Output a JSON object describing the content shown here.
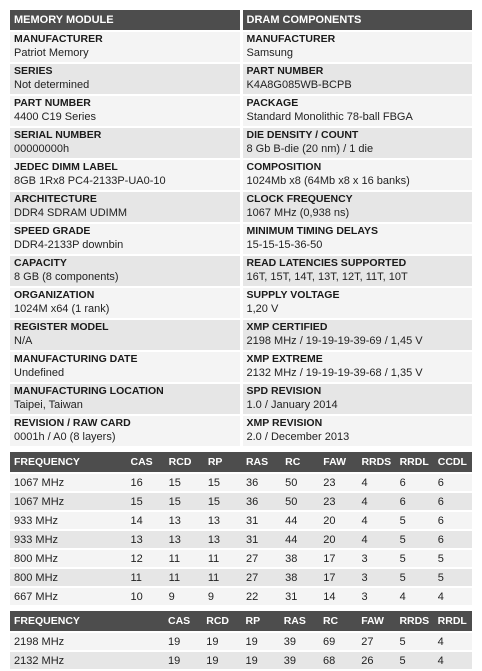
{
  "module": {
    "header": "MEMORY MODULE",
    "fields": [
      {
        "label": "MANUFACTURER",
        "value": "Patriot Memory"
      },
      {
        "label": "SERIES",
        "value": "Not determined"
      },
      {
        "label": "PART NUMBER",
        "value": "4400 C19 Series"
      },
      {
        "label": "SERIAL NUMBER",
        "value": "00000000h"
      },
      {
        "label": "JEDEC DIMM LABEL",
        "value": "8GB 1Rx8 PC4-2133P-UA0-10"
      },
      {
        "label": "ARCHITECTURE",
        "value": "DDR4 SDRAM UDIMM"
      },
      {
        "label": "SPEED GRADE",
        "value": "DDR4-2133P downbin"
      },
      {
        "label": "CAPACITY",
        "value": "8 GB (8 components)"
      },
      {
        "label": "ORGANIZATION",
        "value": "1024M x64 (1 rank)"
      },
      {
        "label": "REGISTER MODEL",
        "value": "N/A"
      },
      {
        "label": "MANUFACTURING DATE",
        "value": "Undefined"
      },
      {
        "label": "MANUFACTURING LOCATION",
        "value": "Taipei, Taiwan"
      },
      {
        "label": "REVISION / RAW CARD",
        "value": "0001h / A0 (8 layers)"
      }
    ]
  },
  "dram": {
    "header": "DRAM COMPONENTS",
    "fields": [
      {
        "label": "MANUFACTURER",
        "value": "Samsung"
      },
      {
        "label": "PART NUMBER",
        "value": "K4A8G085WB-BCPB"
      },
      {
        "label": "PACKAGE",
        "value": "Standard Monolithic 78-ball FBGA"
      },
      {
        "label": "DIE DENSITY / COUNT",
        "value": "8 Gb B-die (20 nm) / 1 die"
      },
      {
        "label": "COMPOSITION",
        "value": "1024Mb x8 (64Mb x8 x 16 banks)"
      },
      {
        "label": "CLOCK FREQUENCY",
        "value": "1067 MHz (0,938 ns)"
      },
      {
        "label": "MINIMUM TIMING DELAYS",
        "value": "15-15-15-36-50"
      },
      {
        "label": "READ LATENCIES SUPPORTED",
        "value": "16T, 15T, 14T, 13T, 12T, 11T, 10T"
      },
      {
        "label": "SUPPLY VOLTAGE",
        "value": "1,20 V"
      },
      {
        "label": "XMP CERTIFIED",
        "value": "2198 MHz / 19-19-19-39-69 / 1,45 V"
      },
      {
        "label": "XMP EXTREME",
        "value": "2132 MHz / 19-19-19-39-68 / 1,35 V"
      },
      {
        "label": "SPD REVISION",
        "value": "1.0 / January 2014"
      },
      {
        "label": "XMP REVISION",
        "value": "2.0 / December 2013"
      }
    ]
  },
  "jedec_table": {
    "headers": [
      "FREQUENCY",
      "CAS",
      "RCD",
      "RP",
      "RAS",
      "RC",
      "FAW",
      "RRDS",
      "RRDL",
      "CCDL"
    ],
    "rows": [
      [
        "1067 MHz",
        "16",
        "15",
        "15",
        "36",
        "50",
        "23",
        "4",
        "6",
        "6"
      ],
      [
        "1067 MHz",
        "15",
        "15",
        "15",
        "36",
        "50",
        "23",
        "4",
        "6",
        "6"
      ],
      [
        "933 MHz",
        "14",
        "13",
        "13",
        "31",
        "44",
        "20",
        "4",
        "5",
        "6"
      ],
      [
        "933 MHz",
        "13",
        "13",
        "13",
        "31",
        "44",
        "20",
        "4",
        "5",
        "6"
      ],
      [
        "800 MHz",
        "12",
        "11",
        "11",
        "27",
        "38",
        "17",
        "3",
        "5",
        "5"
      ],
      [
        "800 MHz",
        "11",
        "11",
        "11",
        "27",
        "38",
        "17",
        "3",
        "5",
        "5"
      ],
      [
        "667 MHz",
        "10",
        "9",
        "9",
        "22",
        "31",
        "14",
        "3",
        "4",
        "4"
      ]
    ]
  },
  "xmp_table": {
    "headers": [
      "FREQUENCY",
      "CAS",
      "RCD",
      "RP",
      "RAS",
      "RC",
      "FAW",
      "RRDS",
      "RRDL"
    ],
    "rows": [
      [
        "2198 MHz",
        "19",
        "19",
        "19",
        "39",
        "69",
        "27",
        "5",
        "4"
      ],
      [
        "2132 MHz",
        "19",
        "19",
        "19",
        "39",
        "68",
        "26",
        "5",
        "4"
      ]
    ]
  }
}
